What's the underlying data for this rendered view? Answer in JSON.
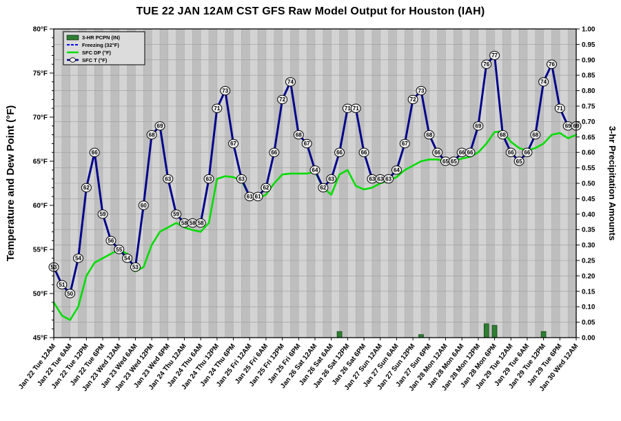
{
  "chart_data": {
    "type": "line",
    "title": "TUE 22 JAN 12AM CST GFS Raw Model Output for Houston (IAH)",
    "ylabel_left": "Temperature and Dew Point (°F)",
    "ylabel_right": "3-hr Precipitation Amounts",
    "axis_left": {
      "min": 45,
      "max": 80,
      "tick_step": 5,
      "tick_suffix": "°F"
    },
    "axis_right": {
      "min": 0,
      "max": 1,
      "tick_step": 0.05
    },
    "grid": "on",
    "legend_position": "top-left",
    "x_labels": [
      "Jan 22 Tue 12AM",
      "Jan 22 Tue 6AM",
      "Jan 22 Tue 12PM",
      "Jan 22 Tue 6PM",
      "Jan 23 Wed 12AM",
      "Jan 23 Wed 6AM",
      "Jan 23 Wed 12PM",
      "Jan 23 Wed 6PM",
      "Jan 24 Thu 12AM",
      "Jan 24 Thu 6AM",
      "Jan 24 Thu 12PM",
      "Jan 24 Thu 6PM",
      "Jan 25 Fri 12AM",
      "Jan 25 Fri 6AM",
      "Jan 25 Fri 12PM",
      "Jan 25 Fri 6PM",
      "Jan 26 Sat 12AM",
      "Jan 26 Sat 6AM",
      "Jan 26 Sat 12PM",
      "Jan 26 Sat 6PM",
      "Jan 27 Sun 12AM",
      "Jan 27 Sun 6AM",
      "Jan 27 Sun 12PM",
      "Jan 27 Sun 6PM",
      "Jan 28 Mon 12AM",
      "Jan 28 Mon 6AM",
      "Jan 28 Mon 12PM",
      "Jan 28 Mon 6PM",
      "Jan 29 Tue 12AM",
      "Jan 29 Tue 6AM",
      "Jan 29 Tue 12PM",
      "Jan 29 Tue 6PM",
      "Jan 30 Wed 12AM"
    ],
    "legend": [
      "3-HR PCPN (IN)",
      "Freezing (32°F)",
      "SFC DP (°F)",
      "SFC T (°F)"
    ],
    "series": {
      "temp": {
        "name": "SFC T (°F)",
        "values": [
          53,
          51,
          50,
          54,
          62,
          66,
          59,
          56,
          55,
          54,
          53,
          60,
          68,
          69,
          63,
          59,
          58,
          58,
          58,
          63,
          71,
          73,
          67,
          63,
          61,
          61,
          62,
          66,
          72,
          74,
          68,
          67,
          64,
          62,
          63,
          66,
          71,
          71,
          66,
          63,
          63,
          63,
          64,
          67,
          72,
          73,
          68,
          66,
          65,
          65,
          66,
          66,
          69,
          76,
          77,
          68,
          66,
          65,
          66,
          68,
          74,
          76,
          71,
          69,
          69
        ]
      },
      "dew": {
        "name": "SFC DP (°F)",
        "values": [
          49,
          47.5,
          47,
          48.5,
          52,
          53.5,
          54,
          54.5,
          55,
          54.5,
          52.5,
          53,
          55.5,
          57,
          57.5,
          58,
          57.5,
          57.2,
          57,
          58,
          63,
          63.3,
          63.2,
          62.8,
          61,
          60.8,
          61.2,
          62.5,
          63.5,
          63.6,
          63.6,
          63.6,
          63.8,
          62,
          61.2,
          63.5,
          64,
          62.2,
          61.8,
          62,
          62.5,
          62.8,
          63.2,
          64,
          64.5,
          65,
          65.2,
          65.2,
          65,
          65,
          65.3,
          65.5,
          66,
          67,
          68.3,
          68.4,
          67.2,
          66.5,
          66.2,
          66.5,
          67,
          68,
          68.2,
          67.6,
          68
        ]
      },
      "precip": {
        "name": "3-HR PCPN (IN)",
        "values": [
          0,
          0,
          0,
          0,
          0,
          0,
          0,
          0,
          0,
          0,
          0,
          0,
          0,
          0,
          0,
          0,
          0,
          0,
          0,
          0,
          0,
          0,
          0,
          0,
          0,
          0,
          0,
          0,
          0,
          0,
          0,
          0,
          0,
          0,
          0,
          0.02,
          0,
          0,
          0,
          0,
          0,
          0,
          0,
          0,
          0,
          0.01,
          0,
          0,
          0,
          0,
          0,
          0,
          0,
          0.045,
          0.04,
          0,
          0,
          0,
          0,
          0,
          0.02,
          0,
          0,
          0,
          0
        ]
      }
    },
    "colors": {
      "temp": "#00008b",
      "dew": "#00dd00",
      "precip": "#2e7d32",
      "freezing": "#0000ff",
      "stripe_light": "#d3d3d3",
      "stripe_dark": "#bebebe",
      "grid": "#9a9a9a",
      "plot_border": "#000000"
    }
  }
}
